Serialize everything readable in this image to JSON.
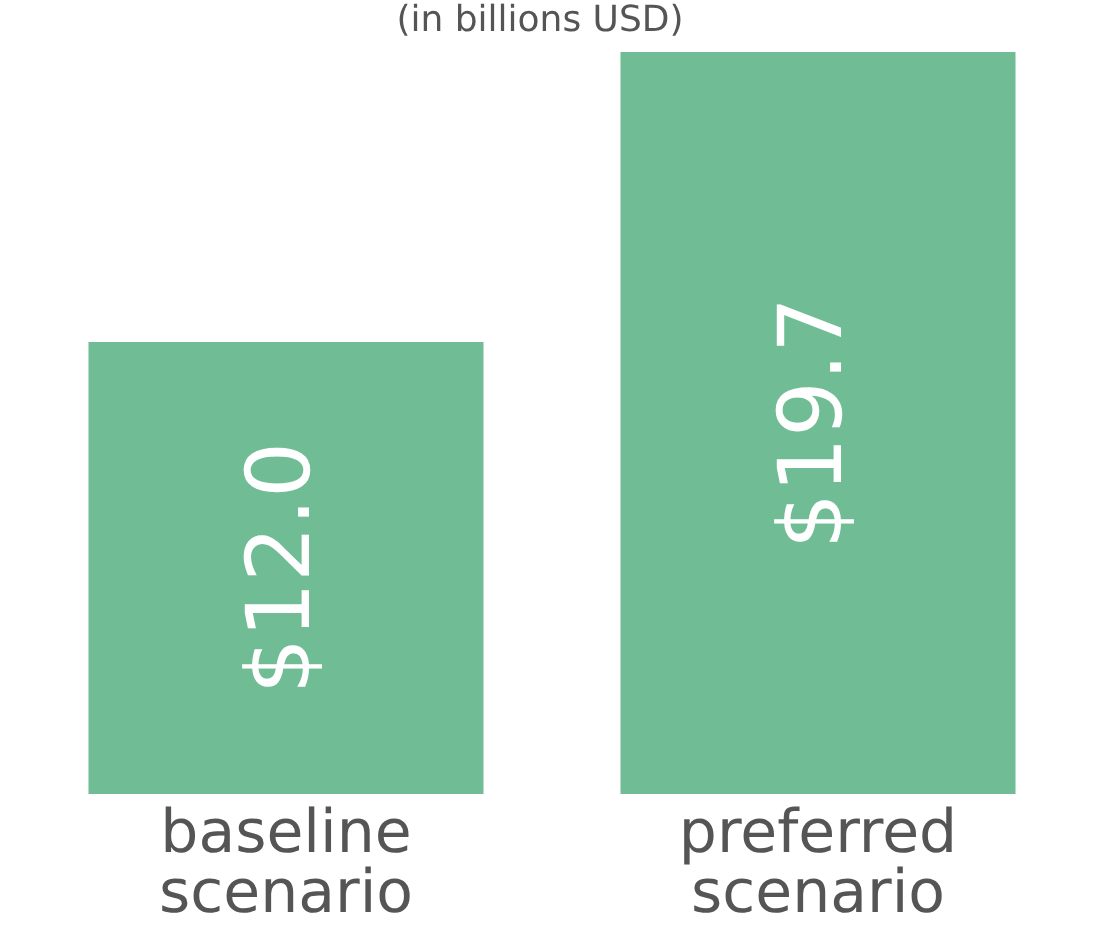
{
  "chart_data": {
    "type": "bar",
    "subtitle": "(in billions USD)",
    "categories": [
      "baseline scenario",
      "preferred scenario"
    ],
    "values": [
      12.0,
      19.7
    ],
    "color": "#70bd95",
    "value_labels": [
      "$12.0",
      "$19.7"
    ],
    "grid": false,
    "legend": false,
    "tick_labels": "x"
  }
}
